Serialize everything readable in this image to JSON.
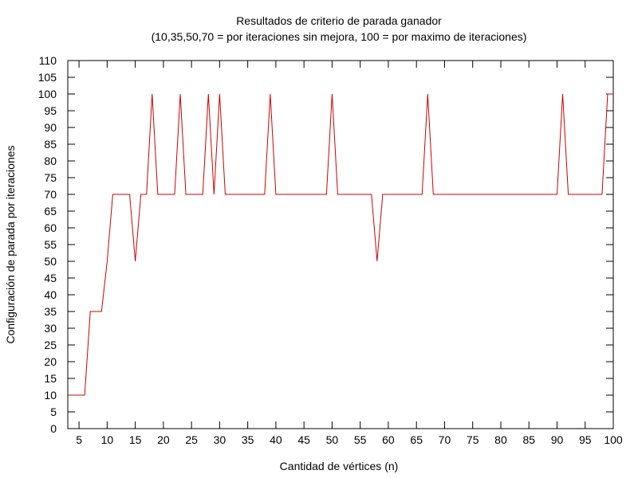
{
  "chart_data": {
    "type": "line",
    "title": "Resultados de criterio de parada ganador",
    "subtitle": "(10,35,50,70 = por iteraciones sin mejora, 100 = por maximo de iteraciones)",
    "xlabel": "Cantidad de vértices (n)",
    "ylabel": "Configuración de parada por iteraciones",
    "xlim": [
      3,
      100
    ],
    "ylim": [
      0,
      110
    ],
    "xticks": [
      5,
      10,
      15,
      20,
      25,
      30,
      35,
      40,
      45,
      50,
      55,
      60,
      65,
      70,
      75,
      80,
      85,
      90,
      95,
      100
    ],
    "yticks": [
      0,
      5,
      10,
      15,
      20,
      25,
      30,
      35,
      40,
      45,
      50,
      55,
      60,
      65,
      70,
      75,
      80,
      85,
      90,
      95,
      100,
      105,
      110
    ],
    "grid": false,
    "legend": "none",
    "series": [
      {
        "color": "#cc0000",
        "x": [
          3,
          4,
          5,
          6,
          7,
          8,
          9,
          10,
          11,
          12,
          13,
          14,
          15,
          16,
          17,
          18,
          19,
          20,
          21,
          22,
          23,
          24,
          25,
          26,
          27,
          28,
          29,
          30,
          31,
          32,
          33,
          34,
          35,
          36,
          37,
          38,
          39,
          40,
          41,
          42,
          43,
          44,
          45,
          46,
          47,
          48,
          49,
          50,
          51,
          52,
          53,
          54,
          55,
          56,
          57,
          58,
          59,
          60,
          61,
          62,
          63,
          64,
          65,
          66,
          67,
          68,
          69,
          70,
          71,
          72,
          73,
          74,
          75,
          76,
          77,
          78,
          79,
          80,
          81,
          82,
          83,
          84,
          85,
          86,
          87,
          88,
          89,
          90,
          91,
          92,
          93,
          94,
          95,
          96,
          97,
          98,
          99,
          100
        ],
        "y": [
          10,
          10,
          10,
          10,
          35,
          35,
          35,
          50,
          70,
          70,
          70,
          70,
          50,
          70,
          70,
          100,
          70,
          70,
          70,
          70,
          100,
          70,
          70,
          70,
          70,
          100,
          70,
          100,
          70,
          70,
          70,
          70,
          70,
          70,
          70,
          70,
          100,
          70,
          70,
          70,
          70,
          70,
          70,
          70,
          70,
          70,
          70,
          100,
          70,
          70,
          70,
          70,
          70,
          70,
          70,
          50,
          70,
          70,
          70,
          70,
          70,
          70,
          70,
          70,
          100,
          70,
          70,
          70,
          70,
          70,
          70,
          70,
          70,
          70,
          70,
          70,
          70,
          70,
          70,
          70,
          70,
          70,
          70,
          70,
          70,
          70,
          70,
          70,
          100,
          70,
          70,
          70,
          70,
          70,
          70,
          70,
          100,
          100
        ]
      }
    ]
  }
}
